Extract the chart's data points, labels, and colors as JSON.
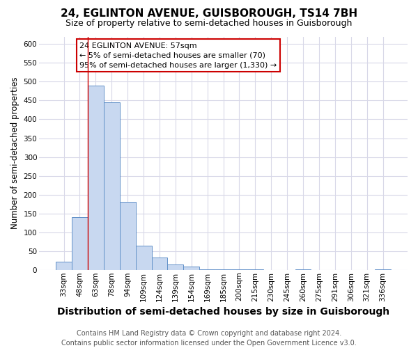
{
  "title": "24, EGLINTON AVENUE, GUISBOROUGH, TS14 7BH",
  "subtitle": "Size of property relative to semi-detached houses in Guisborough",
  "xlabel": "Distribution of semi-detached houses by size in Guisborough",
  "ylabel": "Number of semi-detached properties",
  "footer_line1": "Contains HM Land Registry data © Crown copyright and database right 2024.",
  "footer_line2": "Contains public sector information licensed under the Open Government Licence v3.0.",
  "categories": [
    "33sqm",
    "48sqm",
    "63sqm",
    "78sqm",
    "94sqm",
    "109sqm",
    "124sqm",
    "139sqm",
    "154sqm",
    "169sqm",
    "185sqm",
    "200sqm",
    "215sqm",
    "230sqm",
    "245sqm",
    "260sqm",
    "275sqm",
    "291sqm",
    "306sqm",
    "321sqm",
    "336sqm"
  ],
  "values": [
    22,
    140,
    490,
    445,
    180,
    65,
    33,
    15,
    8,
    2,
    2,
    2,
    2,
    0,
    0,
    2,
    0,
    0,
    0,
    0,
    2
  ],
  "bar_color": "#c8d8f0",
  "bar_edge_color": "#6090c8",
  "red_line_x": 1.5,
  "annotation_text": "24 EGLINTON AVENUE: 57sqm\n← 5% of semi-detached houses are smaller (70)\n95% of semi-detached houses are larger (1,330) →",
  "annotation_box_color": "#ffffff",
  "annotation_box_edge_color": "#cc0000",
  "ylim": [
    0,
    620
  ],
  "yticks": [
    0,
    50,
    100,
    150,
    200,
    250,
    300,
    350,
    400,
    450,
    500,
    550,
    600
  ],
  "background_color": "#ffffff",
  "grid_color": "#d8d8e8",
  "title_fontsize": 11,
  "subtitle_fontsize": 9,
  "xlabel_fontsize": 10,
  "ylabel_fontsize": 8.5,
  "tick_fontsize": 7.5,
  "footer_fontsize": 7,
  "annot_fontsize": 8
}
